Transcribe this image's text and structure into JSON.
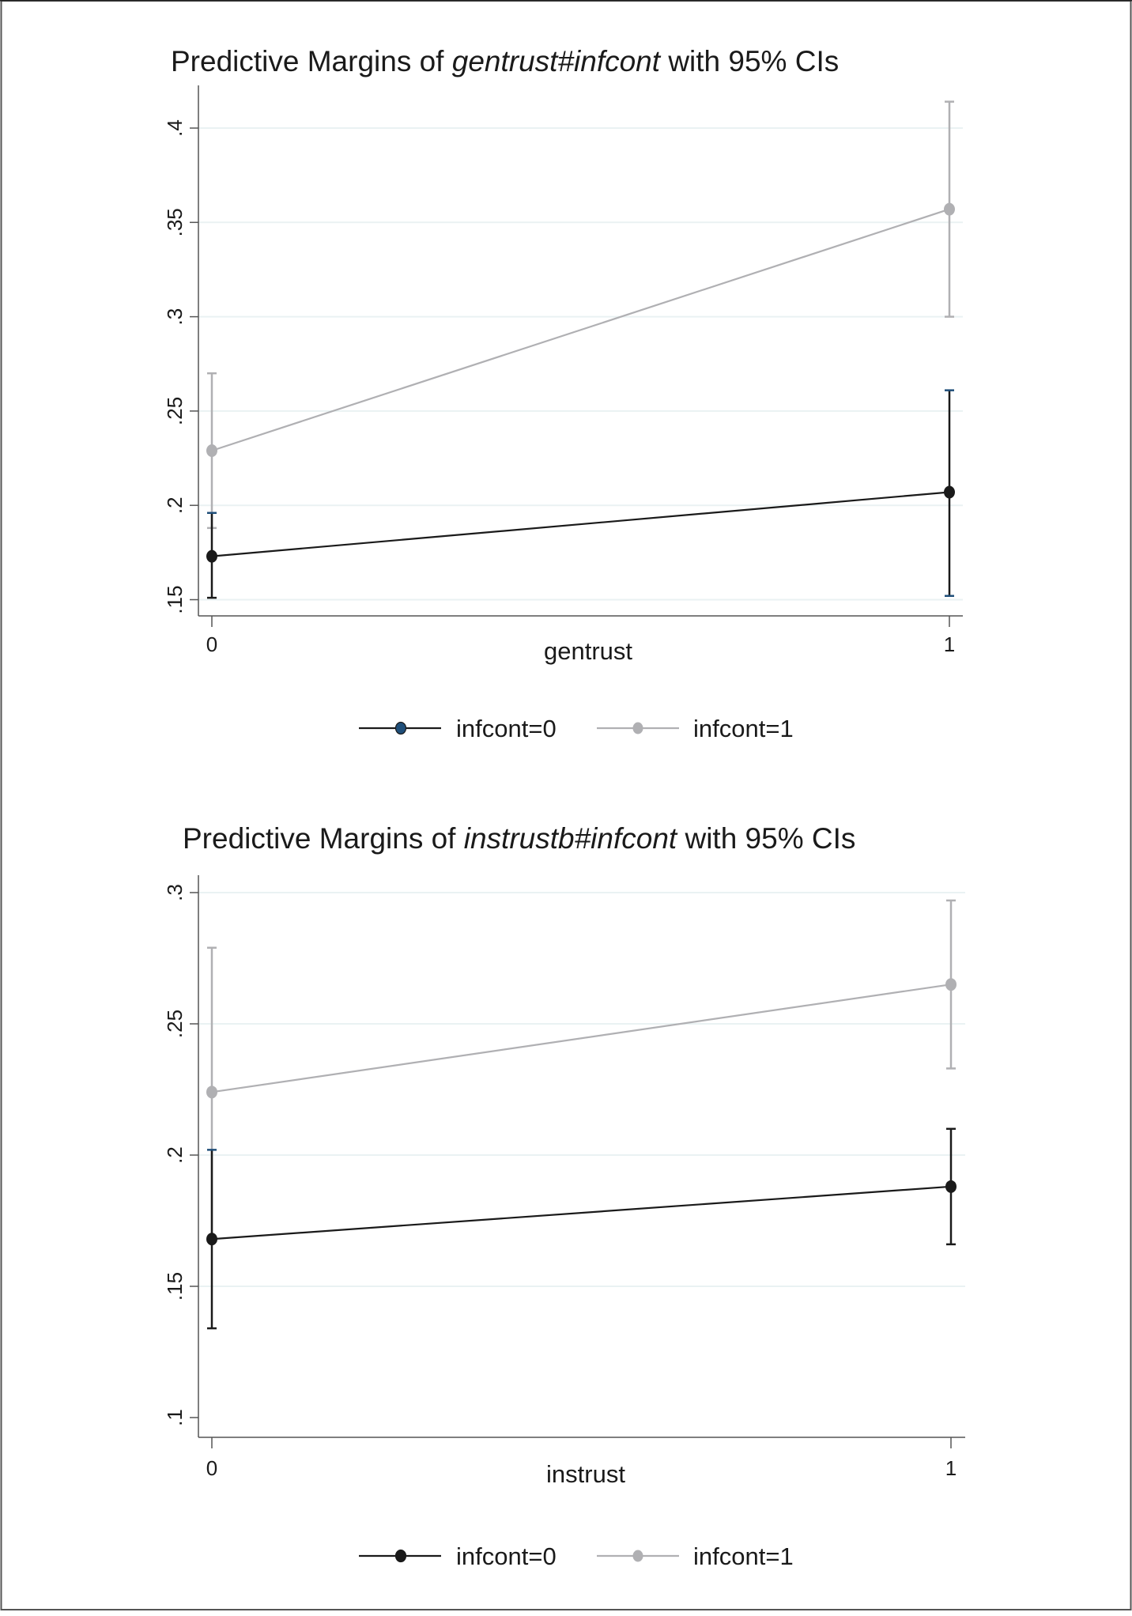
{
  "colors": {
    "series0": "#1a1a1a",
    "series0_cap": "#1f4e79",
    "series1": "#b0b0b3",
    "grid": "#eaf2f3",
    "axis": "#555555",
    "border": "#555555",
    "legend_marker0_top": "#1f4e79"
  },
  "chart_data": [
    {
      "type": "line",
      "title": "Predictive Margins of gentrust#infcont with 95% CIs",
      "title_parts": {
        "prefix": "Predictive Margins of ",
        "italic": "gentrust#infcont",
        "suffix": " with 95% CIs"
      },
      "xlabel": "gentrust",
      "ylabel": "",
      "x": [
        0,
        1
      ],
      "x_tick_labels": [
        "0",
        "1"
      ],
      "y_ticks": [
        0.15,
        0.2,
        0.25,
        0.3,
        0.35,
        0.4
      ],
      "y_tick_labels": [
        ".15",
        ".2",
        ".25",
        ".3",
        ".35",
        ".4"
      ],
      "ylim": [
        0.145,
        0.42
      ],
      "grid": true,
      "legend_position": "bottom",
      "series": [
        {
          "name": "infcont=0",
          "values": [
            0.173,
            0.207
          ],
          "ci_low": [
            0.151,
            0.152
          ],
          "ci_high": [
            0.196,
            0.261
          ]
        },
        {
          "name": "infcont=1",
          "values": [
            0.229,
            0.357
          ],
          "ci_low": [
            0.188,
            0.3
          ],
          "ci_high": [
            0.27,
            0.414
          ]
        }
      ]
    },
    {
      "type": "line",
      "title": "Predictive Margins of instrustb#infcont with 95% CIs",
      "title_parts": {
        "prefix": "Predictive Margins of ",
        "italic": "instrustb#infcont",
        "suffix": " with 95% CIs"
      },
      "xlabel": "instrust",
      "ylabel": "",
      "x": [
        0,
        1
      ],
      "x_tick_labels": [
        "0",
        "1"
      ],
      "y_ticks": [
        0.1,
        0.15,
        0.2,
        0.25,
        0.3
      ],
      "y_tick_labels": [
        ".1",
        ".15",
        ".2",
        ".25",
        ".3"
      ],
      "ylim": [
        0.093,
        0.306
      ],
      "grid": true,
      "legend_position": "bottom",
      "series": [
        {
          "name": "infcont=0",
          "values": [
            0.168,
            0.188
          ],
          "ci_low": [
            0.134,
            0.166
          ],
          "ci_high": [
            0.202,
            0.21
          ]
        },
        {
          "name": "infcont=1",
          "values": [
            0.224,
            0.265
          ],
          "ci_low": [
            0.168,
            0.233
          ],
          "ci_high": [
            0.279,
            0.297
          ]
        }
      ]
    }
  ]
}
